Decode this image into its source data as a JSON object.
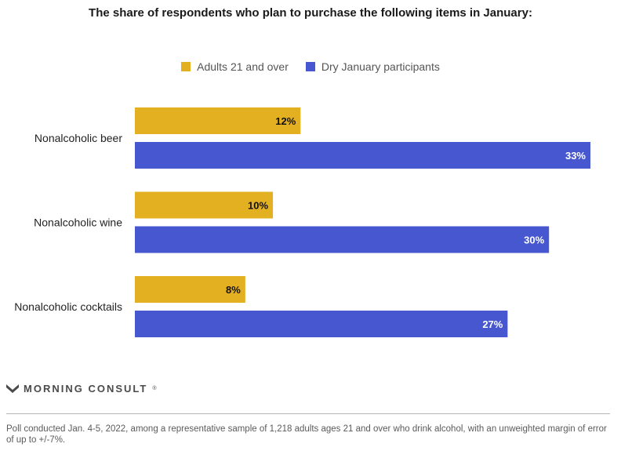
{
  "colors": {
    "adults": "#e3b022",
    "dry": "#4657d0"
  },
  "chart_data": {
    "type": "bar",
    "orientation": "horizontal",
    "title": "The share of respondents who plan to purchase the following items in January:",
    "categories": [
      "Nonalcoholic beer",
      "Nonalcoholic wine",
      "Nonalcoholic cocktails"
    ],
    "series": [
      {
        "name": "Adults 21 and over",
        "values": [
          12,
          10,
          8
        ],
        "labels": [
          "12%",
          "10%",
          "8%"
        ]
      },
      {
        "name": "Dry January participants",
        "values": [
          33,
          30,
          27
        ],
        "labels": [
          "33%",
          "30%",
          "27%"
        ]
      }
    ],
    "xlim": [
      0,
      33
    ],
    "unit": "%",
    "legend_position": "top-center",
    "grid": false
  },
  "brand": {
    "name": "MORNING CONSULT",
    "tm": "®"
  },
  "footnote": "Poll conducted Jan. 4-5, 2022, among a representative sample of 1,218 adults ages 21 and over who drink alcohol, with an unweighted margin of error of up to +/-7%."
}
